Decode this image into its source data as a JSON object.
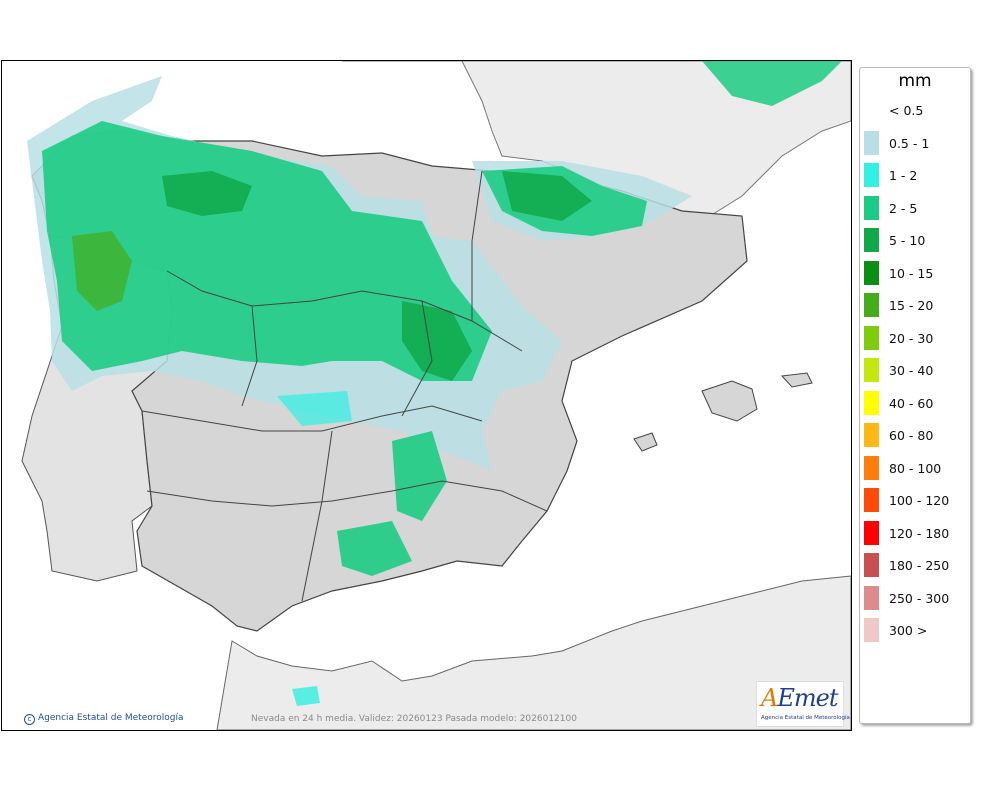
{
  "map": {
    "copyright": "Agencia Estatal de Meteorología",
    "caption": "Nevada en 24 h media. Validez: 20260123 Pasada modelo: 2026012100",
    "logo": {
      "word_a": "A",
      "word_rest": "Emet",
      "subtitle": "Agencia Estatal de Meteorología"
    }
  },
  "legend": {
    "unit": "mm",
    "items": [
      {
        "label": "< 0.5",
        "color": ""
      },
      {
        "label": "0.5 - 1",
        "color": "#b8dfe4"
      },
      {
        "label": "1 - 2",
        "color": "#32f0e2"
      },
      {
        "label": "2 - 5",
        "color": "#1dcc84"
      },
      {
        "label": "5 - 10",
        "color": "#11a84a"
      },
      {
        "label": "10 - 15",
        "color": "#0b8f12"
      },
      {
        "label": "15 - 20",
        "color": "#45ac1b"
      },
      {
        "label": "20 - 30",
        "color": "#7fcc0f"
      },
      {
        "label": "30 - 40",
        "color": "#c4e80d"
      },
      {
        "label": "40 - 60",
        "color": "#ffff00"
      },
      {
        "label": "60 - 80",
        "color": "#ffb914"
      },
      {
        "label": "80 - 100",
        "color": "#ff7d0a"
      },
      {
        "label": "100 - 120",
        "color": "#ff4a0a"
      },
      {
        "label": "120 - 180",
        "color": "#ff0000"
      },
      {
        "label": "180 - 250",
        "color": "#c85050"
      },
      {
        "label": "250 - 300",
        "color": "#dc8c8c"
      },
      {
        "label": "300 >",
        "color": "#f0c8c8"
      }
    ]
  }
}
